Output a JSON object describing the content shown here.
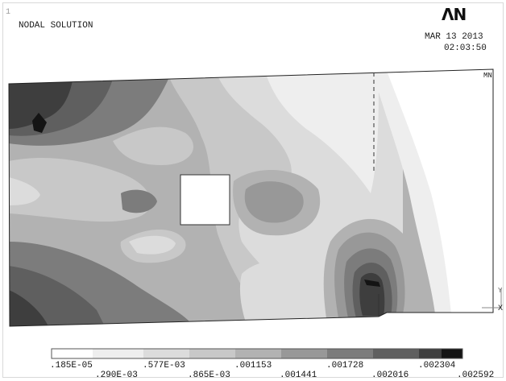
{
  "window_number": "1",
  "title": "NODAL SOLUTION",
  "logo_text": "ΛN",
  "date": "MAR 13 2013",
  "time": "02:03:50",
  "markers": {
    "mn": "MN",
    "mx": "MX",
    "axis_y": "Y",
    "axis_x": "X"
  },
  "legend": {
    "labels_top": [
      ".185E-05",
      ".577E-03",
      ".001153",
      ".001728",
      ".002304"
    ],
    "labels_bottom": [
      ".290E-03",
      ".865E-03",
      ".001441",
      ".002016",
      ".002592"
    ],
    "colors": [
      "#ffffff",
      "#eeeeee",
      "#dcdcdc",
      "#c8c8c8",
      "#b2b2b2",
      "#989898",
      "#7c7c7c",
      "#5f5f5f",
      "#3e3e3e",
      "#141414"
    ]
  }
}
